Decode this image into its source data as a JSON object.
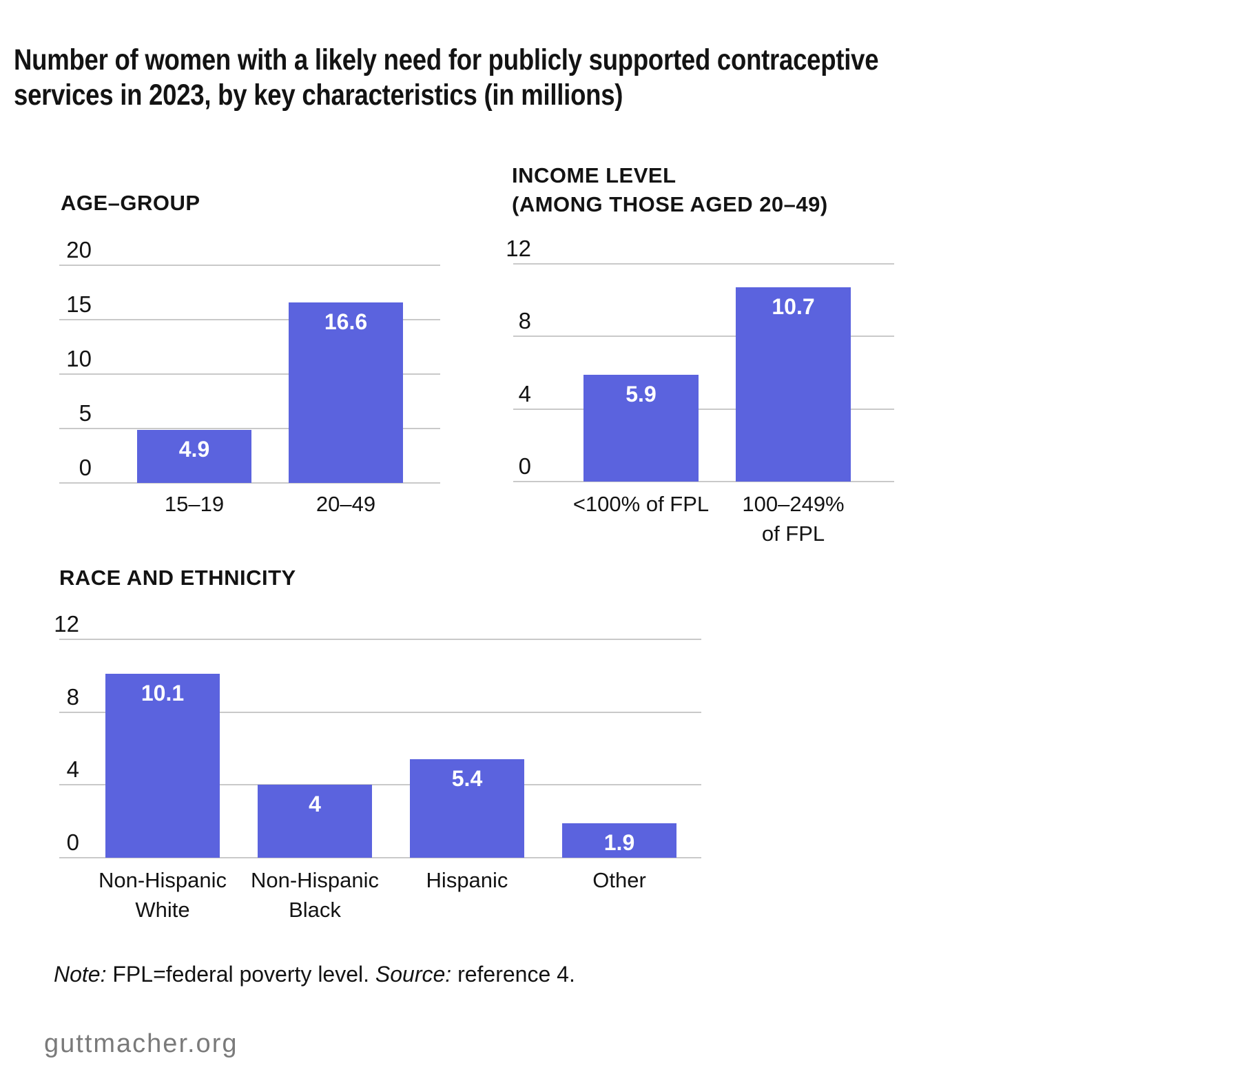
{
  "title": "Number of women with a likely need for publicly supported contraceptive services in 2023, by key characteristics (in millions)",
  "title_lines": [
    "Number of women with a likely need for publicly supported contraceptive",
    "services in 2023, by key characteristics (in millions)"
  ],
  "colors": {
    "bar": "#5b63de",
    "grid": "#c9c9c9",
    "text": "#131313",
    "value_label": "#ffffff",
    "footer_text": "#7a7a7a"
  },
  "chart_data": [
    {
      "type": "bar",
      "title": "AGE–GROUP",
      "title_lines": [
        "AGE–GROUP"
      ],
      "categories": [
        "15–19",
        "20–49"
      ],
      "category_lines": [
        [
          "15–19"
        ],
        [
          "20–49"
        ]
      ],
      "values": [
        4.9,
        16.6
      ],
      "value_labels": [
        "4.9",
        "16.6"
      ],
      "xlabel": "",
      "ylabel": "",
      "ylim": [
        0,
        20
      ],
      "yticks": [
        20,
        15,
        10,
        5,
        0
      ],
      "grid": true,
      "legend": "none"
    },
    {
      "type": "bar",
      "title": "INCOME LEVEL (AMONG THOSE AGED 20–49)",
      "title_lines": [
        "INCOME LEVEL",
        "(AMONG THOSE AGED 20–49)"
      ],
      "categories": [
        "<100% of FPL",
        "100–249% of FPL"
      ],
      "category_lines": [
        [
          "<100% of FPL"
        ],
        [
          "100–249%",
          "of FPL"
        ]
      ],
      "values": [
        5.9,
        10.7
      ],
      "value_labels": [
        "5.9",
        "10.7"
      ],
      "xlabel": "",
      "ylabel": "",
      "ylim": [
        0,
        12
      ],
      "yticks": [
        12,
        8,
        4,
        0
      ],
      "grid": true,
      "legend": "none"
    },
    {
      "type": "bar",
      "title": "RACE AND ETHNICITY",
      "title_lines": [
        "RACE AND ETHNICITY"
      ],
      "categories": [
        "Non-Hispanic White",
        "Non-Hispanic Black",
        "Hispanic",
        "Other"
      ],
      "category_lines": [
        [
          "Non-Hispanic",
          "White"
        ],
        [
          "Non-Hispanic",
          "Black"
        ],
        [
          "Hispanic"
        ],
        [
          "Other"
        ]
      ],
      "values": [
        10.1,
        4,
        5.4,
        1.9
      ],
      "value_labels": [
        "10.1",
        "4",
        "5.4",
        "1.9"
      ],
      "xlabel": "",
      "ylabel": "",
      "ylim": [
        0,
        12
      ],
      "yticks": [
        12,
        8,
        4,
        0
      ],
      "grid": true,
      "legend": "none"
    }
  ],
  "note": {
    "note_label": "Note:",
    "note_body": " FPL=federal poverty level. ",
    "source_label": "Source:",
    "source_body": " reference 4."
  },
  "footer": {
    "site": "guttmacher.org"
  }
}
